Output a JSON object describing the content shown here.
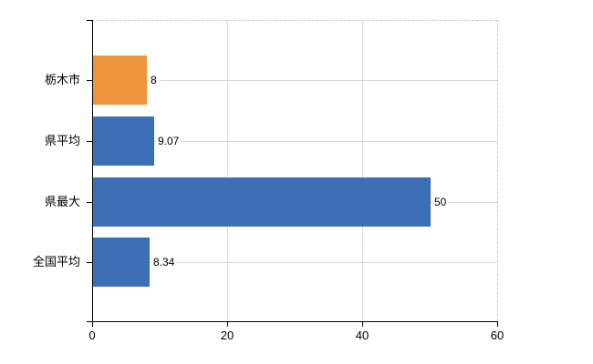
{
  "chart_data": {
    "type": "bar",
    "orientation": "horizontal",
    "categories": [
      "栃木市",
      "県平均",
      "県最大",
      "全国平均"
    ],
    "values": [
      8,
      9.07,
      50,
      8.34
    ],
    "value_labels": [
      "8",
      "9.07",
      "50",
      "8.34"
    ],
    "bar_colors": [
      "#F0943C",
      "#3C6FB5",
      "#3C6FB5",
      "#3C6FB5"
    ],
    "highlight_color": "#F0943C",
    "series_color": "#3C6FB5",
    "xlim": [
      0,
      60
    ],
    "x_ticks": [
      0,
      20,
      40,
      60
    ],
    "x_tick_labels": [
      "0",
      "20",
      "40",
      "60"
    ],
    "grid": true,
    "legend_position": "none",
    "title": ""
  },
  "colors": {
    "background": "#FFFFFF",
    "axis": "#000000",
    "gridline": "#D9D9D9",
    "dashed_border": "#C9C9C9",
    "text": "#000000"
  }
}
